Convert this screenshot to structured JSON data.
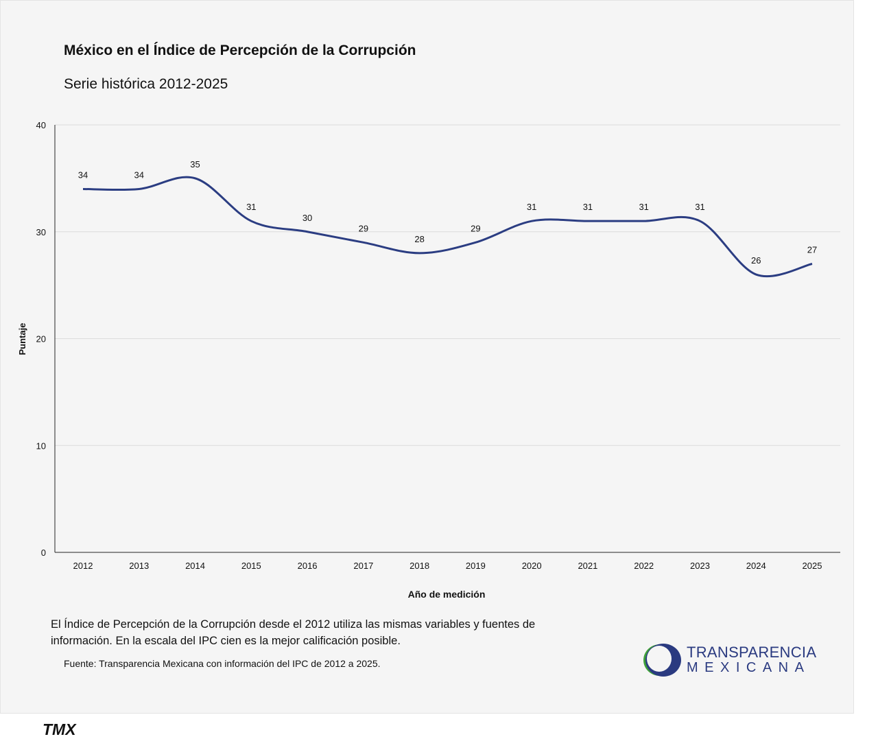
{
  "title": "México en el Índice de Percepción de la Corrupción",
  "subtitle": "Serie histórica 2012-2025",
  "note": "El Índice de Percepción de la Corrupción desde el 2012 utiliza las mismas variables y fuentes de información. En la escala del IPC cien es la mejor calificación posible.",
  "source": "Fuente: Transparencia Mexicana con información del IPC de 2012 a 2025.",
  "logo": {
    "line1": "TRANSPARENCIA",
    "line2": "MEXICANA",
    "colors": {
      "blue": "#2a3a80",
      "green": "#3fa03a"
    }
  },
  "footer": "TMX",
  "chart_data": {
    "type": "line",
    "xlabel": "Año de medición",
    "ylabel": "Puntaje",
    "ylim": [
      0,
      40
    ],
    "yticks": [
      0,
      10,
      20,
      30,
      40
    ],
    "grid": true,
    "line_color": "#2b3d82",
    "categories": [
      "2012",
      "2013",
      "2014",
      "2015",
      "2016",
      "2017",
      "2018",
      "2019",
      "2020",
      "2021",
      "2022",
      "2023",
      "2024",
      "2025"
    ],
    "values": [
      34,
      34,
      35,
      31,
      30,
      29,
      28,
      29,
      31,
      31,
      31,
      31,
      26,
      27
    ]
  }
}
